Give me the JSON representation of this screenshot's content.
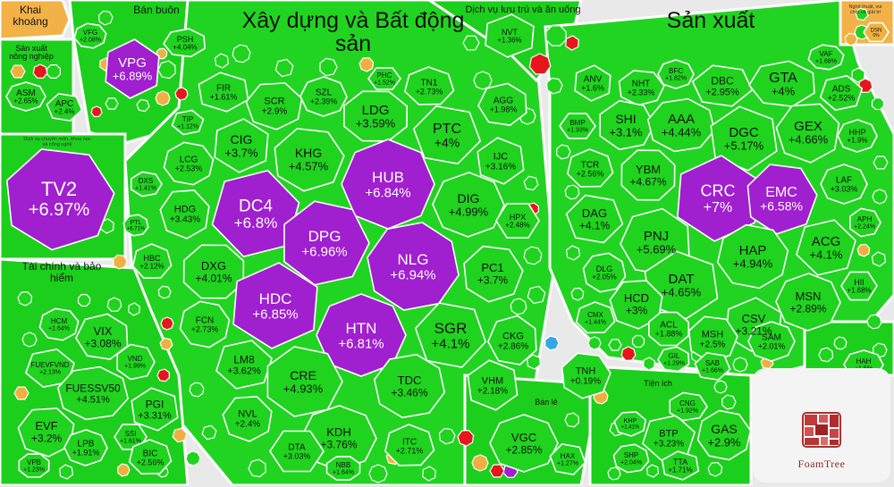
{
  "chart_data": {
    "type": "treemap",
    "title": "",
    "colors": {
      "up": "#1fd31f",
      "ceiling": "#a01fcf",
      "ref": "#f0b040",
      "down": "#e5161c",
      "floor": "#34a8e6"
    },
    "sectors": [
      {
        "name": "Khai khoáng"
      },
      {
        "name": "Bán buôn"
      },
      {
        "name": "Xây dựng và Bất động sản"
      },
      {
        "name": "Dịch vụ lưu trú và ăn uống"
      },
      {
        "name": "Sản xuất"
      },
      {
        "name": "Nghệ thuật, vui chơi và giải trí"
      },
      {
        "name": "Sản xuất nông nghiệp"
      },
      {
        "name": "Dịch vụ chuyên môn, khoa học và công nghệ"
      },
      {
        "name": "Tài chính và bảo hiểm"
      },
      {
        "name": "Bán lẻ"
      },
      {
        "name": "Tiện ích"
      }
    ],
    "cells": [
      {
        "ticker": "VPG",
        "change": "+6.89%",
        "status": "ceiling"
      },
      {
        "ticker": "TV2",
        "change": "+6.97%",
        "status": "ceiling"
      },
      {
        "ticker": "ASM",
        "change": "+2.65%",
        "status": "up"
      },
      {
        "ticker": "APC",
        "change": "+2.4%",
        "status": "up"
      },
      {
        "ticker": "PSH",
        "change": "+4.04%",
        "status": "up"
      },
      {
        "ticker": "VFG",
        "change": "+2.08%",
        "status": "up"
      },
      {
        "ticker": "TIP",
        "change": "+1.12%",
        "status": "up"
      },
      {
        "ticker": "DXS",
        "change": "+1.41%",
        "status": "up"
      },
      {
        "ticker": "PTL",
        "change": "+6.71%",
        "status": "up"
      },
      {
        "ticker": "FIR",
        "change": "+1.61%",
        "status": "up"
      },
      {
        "ticker": "SCR",
        "change": "+2.9%",
        "status": "up"
      },
      {
        "ticker": "SZL",
        "change": "+2.39%",
        "status": "up"
      },
      {
        "ticker": "PHC",
        "change": "+1.52%",
        "status": "up"
      },
      {
        "ticker": "TN1",
        "change": "+2.73%",
        "status": "up"
      },
      {
        "ticker": "LDG",
        "change": "+3.59%",
        "status": "up"
      },
      {
        "ticker": "CIG",
        "change": "+3.7%",
        "status": "up"
      },
      {
        "ticker": "KHG",
        "change": "+4.57%",
        "status": "up"
      },
      {
        "ticker": "HUB",
        "change": "+6.84%",
        "status": "ceiling"
      },
      {
        "ticker": "PTC",
        "change": "+4%",
        "status": "up"
      },
      {
        "ticker": "AGG",
        "change": "+1.98%",
        "status": "up"
      },
      {
        "ticker": "LCG",
        "change": "+2.53%",
        "status": "up"
      },
      {
        "ticker": "DC4",
        "change": "+6.8%",
        "status": "ceiling"
      },
      {
        "ticker": "DPG",
        "change": "+6.96%",
        "status": "ceiling"
      },
      {
        "ticker": "NLG",
        "change": "+6.94%",
        "status": "ceiling"
      },
      {
        "ticker": "IJC",
        "change": "+3.16%",
        "status": "up"
      },
      {
        "ticker": "HDG",
        "change": "+3.43%",
        "status": "up"
      },
      {
        "ticker": "DIG",
        "change": "+4.99%",
        "status": "up"
      },
      {
        "ticker": "HPX",
        "change": "+2.48%",
        "status": "up"
      },
      {
        "ticker": "HBC",
        "change": "+2.12%",
        "status": "up"
      },
      {
        "ticker": "DXG",
        "change": "+4.01%",
        "status": "up"
      },
      {
        "ticker": "HDC",
        "change": "+6.85%",
        "status": "ceiling"
      },
      {
        "ticker": "PC1",
        "change": "+3.7%",
        "status": "up"
      },
      {
        "ticker": "HTN",
        "change": "+6.81%",
        "status": "ceiling"
      },
      {
        "ticker": "SGR",
        "change": "+4.1%",
        "status": "up"
      },
      {
        "ticker": "CKG",
        "change": "+2.86%",
        "status": "up"
      },
      {
        "ticker": "FCN",
        "change": "+2.73%",
        "status": "up"
      },
      {
        "ticker": "LM8",
        "change": "+3.62%",
        "status": "up"
      },
      {
        "ticker": "CRE",
        "change": "+4.93%",
        "status": "up"
      },
      {
        "ticker": "TDC",
        "change": "+3.46%",
        "status": "up"
      },
      {
        "ticker": "VHM",
        "change": "+2.18%",
        "status": "up"
      },
      {
        "ticker": "NVL",
        "change": "+2.4%",
        "status": "up"
      },
      {
        "ticker": "KDH",
        "change": "+3.76%",
        "status": "up"
      },
      {
        "ticker": "DTA",
        "change": "+3.03%",
        "status": "up"
      },
      {
        "ticker": "ITC",
        "change": "+2.71%",
        "status": "up"
      },
      {
        "ticker": "NBB",
        "change": "+1.64%",
        "status": "up"
      },
      {
        "ticker": "NVT",
        "change": "+1.36%",
        "status": "up"
      },
      {
        "ticker": "TNH",
        "change": "+0.19%",
        "status": "up"
      },
      {
        "ticker": "VGC",
        "change": "+2.85%",
        "status": "up"
      },
      {
        "ticker": "HAX",
        "change": "+1.27%",
        "status": "up"
      },
      {
        "ticker": "VIX",
        "change": "+3.08%",
        "status": "up"
      },
      {
        "ticker": "HCM",
        "change": "+1.64%",
        "status": "up"
      },
      {
        "ticker": "FUEVFVND",
        "change": "+2.13%",
        "status": "up"
      },
      {
        "ticker": "VND",
        "change": "+1.99%",
        "status": "up"
      },
      {
        "ticker": "FUESSV50",
        "change": "+4.51%",
        "status": "up"
      },
      {
        "ticker": "PGI",
        "change": "+3.31%",
        "status": "up"
      },
      {
        "ticker": "EVF",
        "change": "+3.2%",
        "status": "up"
      },
      {
        "ticker": "LPB",
        "change": "+1.91%",
        "status": "up"
      },
      {
        "ticker": "SSI",
        "change": "+1.61%",
        "status": "up"
      },
      {
        "ticker": "BIC",
        "change": "+2.56%",
        "status": "up"
      },
      {
        "ticker": "VPB",
        "change": "+1.23%",
        "status": "up"
      },
      {
        "ticker": "ANV",
        "change": "+1.6%",
        "status": "up"
      },
      {
        "ticker": "NHT",
        "change": "+2.33%",
        "status": "up"
      },
      {
        "ticker": "BFC",
        "change": "+1.82%",
        "status": "up"
      },
      {
        "ticker": "DBC",
        "change": "+2.95%",
        "status": "up"
      },
      {
        "ticker": "GTA",
        "change": "+4%",
        "status": "up"
      },
      {
        "ticker": "VAF",
        "change": "+1.68%",
        "status": "up"
      },
      {
        "ticker": "ADS",
        "change": "+2.52%",
        "status": "up"
      },
      {
        "ticker": "SHI",
        "change": "+3.1%",
        "status": "up"
      },
      {
        "ticker": "AAA",
        "change": "+4.44%",
        "status": "up"
      },
      {
        "ticker": "DGC",
        "change": "+5.17%",
        "status": "up"
      },
      {
        "ticker": "GEX",
        "change": "+4.66%",
        "status": "up"
      },
      {
        "ticker": "HHP",
        "change": "+1.9%",
        "status": "up"
      },
      {
        "ticker": "BMP",
        "change": "+1.93%",
        "status": "up"
      },
      {
        "ticker": "TCR",
        "change": "+2.56%",
        "status": "up"
      },
      {
        "ticker": "YBM",
        "change": "+4.67%",
        "status": "up"
      },
      {
        "ticker": "CRC",
        "change": "+7%",
        "status": "ceiling"
      },
      {
        "ticker": "EMC",
        "change": "+6.58%",
        "status": "ceiling"
      },
      {
        "ticker": "LAF",
        "change": "+3.03%",
        "status": "up"
      },
      {
        "ticker": "DAG",
        "change": "+4.1%",
        "status": "up"
      },
      {
        "ticker": "PNJ",
        "change": "+5.69%",
        "status": "up"
      },
      {
        "ticker": "HAP",
        "change": "+4.94%",
        "status": "up"
      },
      {
        "ticker": "ACG",
        "change": "+4.1%",
        "status": "up"
      },
      {
        "ticker": "APH",
        "change": "+2.24%",
        "status": "up"
      },
      {
        "ticker": "DLG",
        "change": "+2.05%",
        "status": "up"
      },
      {
        "ticker": "DAT",
        "change": "+4.65%",
        "status": "up"
      },
      {
        "ticker": "HCD",
        "change": "+3%",
        "status": "up"
      },
      {
        "ticker": "MSN",
        "change": "+2.89%",
        "status": "up"
      },
      {
        "ticker": "HII",
        "change": "+1.68%",
        "status": "up"
      },
      {
        "ticker": "CMX",
        "change": "+1.44%",
        "status": "up"
      },
      {
        "ticker": "ACL",
        "change": "+1.88%",
        "status": "up"
      },
      {
        "ticker": "CSV",
        "change": "+3.21%",
        "status": "up"
      },
      {
        "ticker": "MSH",
        "change": "+2.5%",
        "status": "up"
      },
      {
        "ticker": "SAM",
        "change": "+2.01%",
        "status": "up"
      },
      {
        "ticker": "SAB",
        "change": "+1.66%",
        "status": "up"
      },
      {
        "ticker": "GIL",
        "change": "+1.29%",
        "status": "up"
      },
      {
        "ticker": "GAS",
        "change": "+2.9%",
        "status": "up"
      },
      {
        "ticker": "BTP",
        "change": "+3.23%",
        "status": "up"
      },
      {
        "ticker": "CNG",
        "change": "+1.92%",
        "status": "up"
      },
      {
        "ticker": "SHP",
        "change": "+2.04%",
        "status": "up"
      },
      {
        "ticker": "TTA",
        "change": "+1.71%",
        "status": "up"
      },
      {
        "ticker": "KHP",
        "change": "+1.41%",
        "status": "up"
      },
      {
        "ticker": "HAH",
        "change": "+1.5%",
        "status": "up"
      },
      {
        "ticker": "DSN",
        "change": "0%",
        "status": "ref"
      }
    ],
    "logo_text": "FoamTree"
  }
}
